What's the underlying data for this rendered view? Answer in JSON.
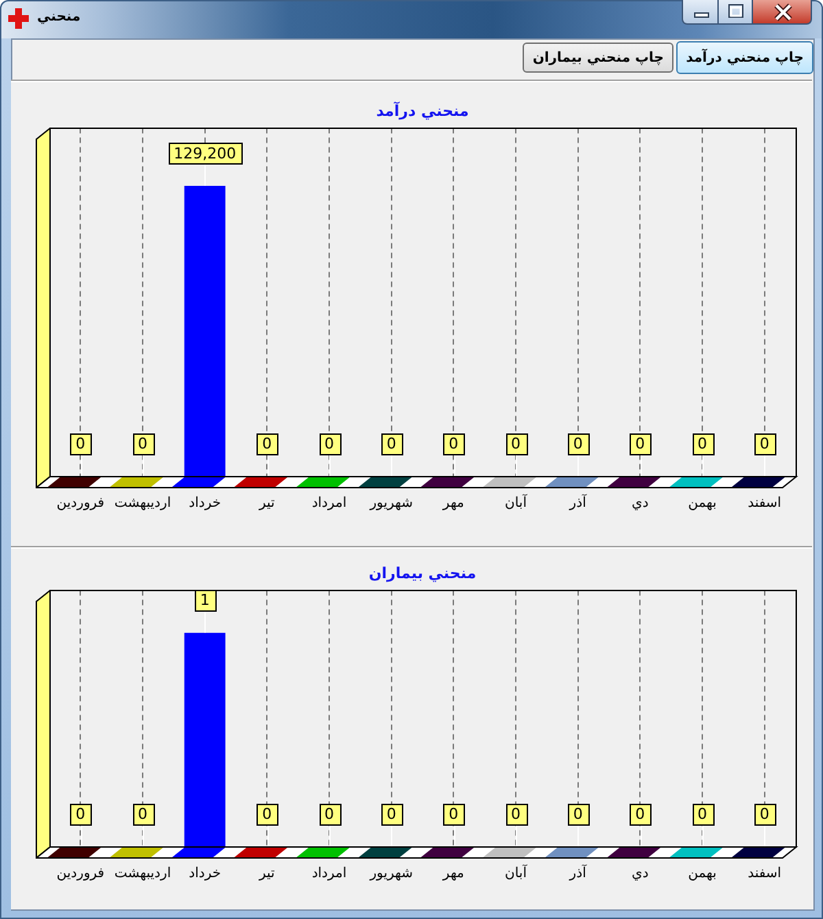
{
  "chart_data": [
    {
      "type": "other",
      "title": "منحني",
      "annotations": [
        "چاپ منحني درآمد",
        "چاپ منحني بيماران"
      ]
    },
    {
      "type": "bar",
      "title": "منحني درآمد",
      "categories": [
        "فروردين",
        "ارديبهشت",
        "خرداد",
        "تير",
        "امرداد",
        "شهريور",
        "مهر",
        "آبان",
        "آذر",
        "دي",
        "بهمن",
        "اسفند"
      ],
      "values": [
        0,
        0,
        129200,
        0,
        0,
        0,
        0,
        0,
        0,
        0,
        0,
        0
      ],
      "colors": [
        "#400000",
        "#c0c000",
        "#0000ff",
        "#c00000",
        "#00c000",
        "#004040",
        "#400040",
        "#c0c0c0",
        "#7090c0",
        "#400040",
        "#00c0c0",
        "#000040"
      ],
      "value_labels": [
        "0",
        "0",
        "129,200",
        "0",
        "0",
        "0",
        "0",
        "0",
        "0",
        "0",
        "0",
        "0"
      ],
      "grid": "x",
      "tick_labels": "x"
    },
    {
      "type": "bar",
      "title": "منحني بيماران",
      "categories": [
        "فروردين",
        "ارديبهشت",
        "خرداد",
        "تير",
        "امرداد",
        "شهريور",
        "مهر",
        "آبان",
        "آذر",
        "دي",
        "بهمن",
        "اسفند"
      ],
      "values": [
        0,
        0,
        1,
        0,
        0,
        0,
        0,
        0,
        0,
        0,
        0,
        0
      ],
      "colors": [
        "#400000",
        "#c0c000",
        "#0000ff",
        "#c00000",
        "#00c000",
        "#004040",
        "#400040",
        "#c0c0c0",
        "#7090c0",
        "#400040",
        "#00c0c0",
        "#000040"
      ],
      "value_labels": [
        "0",
        "0",
        "1",
        "0",
        "0",
        "0",
        "0",
        "0",
        "0",
        "0",
        "0",
        "0"
      ],
      "grid": "x",
      "tick_labels": "x"
    }
  ]
}
